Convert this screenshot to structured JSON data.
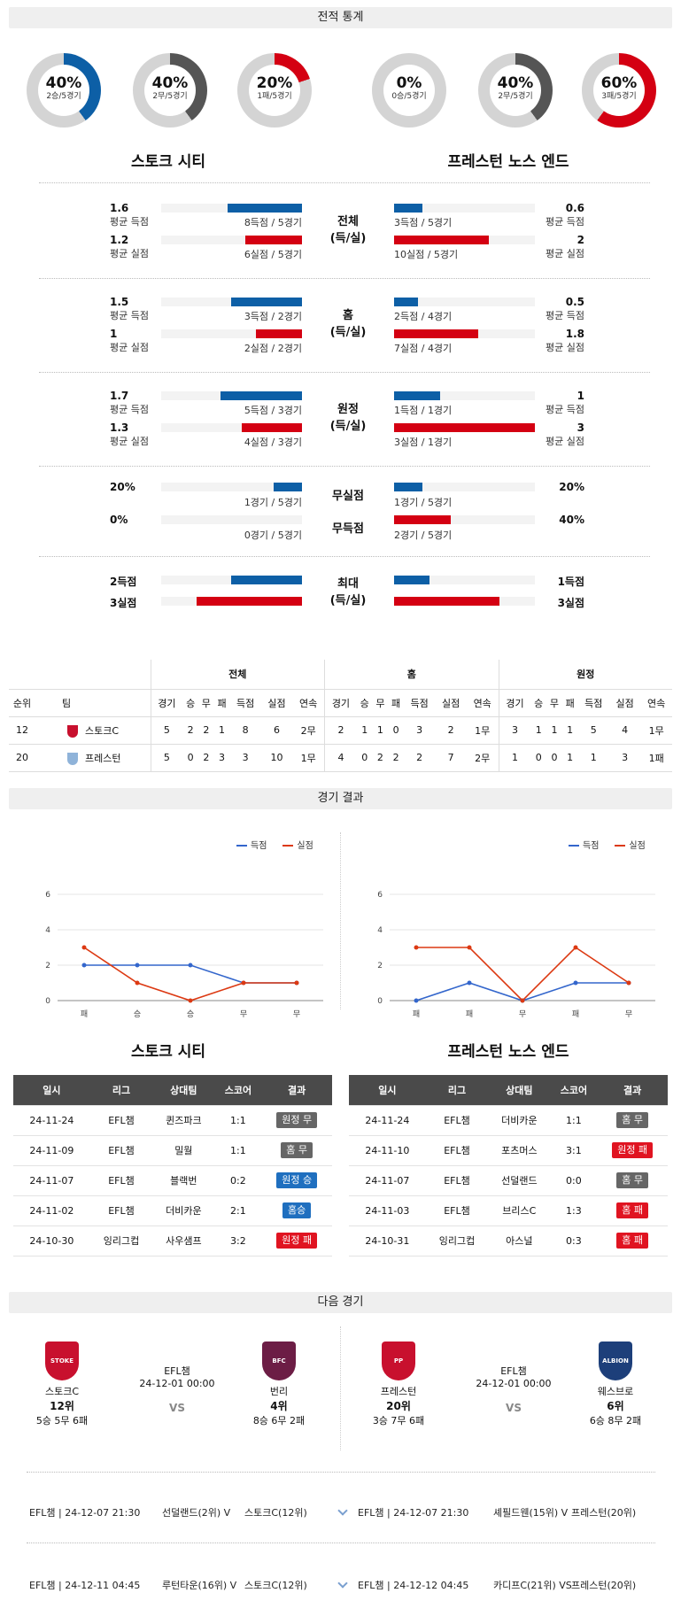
{
  "sections": {
    "stats": "전적 통계",
    "results": "경기 결과",
    "next": "다음 경기"
  },
  "donuts": [
    {
      "pct": "40%",
      "sub": "2승/5경기",
      "value": 40,
      "color": "#0d5fa6"
    },
    {
      "pct": "40%",
      "sub": "2무/5경기",
      "value": 40,
      "color": "#555555"
    },
    {
      "pct": "20%",
      "sub": "1패/5경기",
      "value": 20,
      "color": "#d40012"
    },
    {
      "pct": "0%",
      "sub": "0승/5경기",
      "value": 0,
      "color": "#0d5fa6"
    },
    {
      "pct": "40%",
      "sub": "2무/5경기",
      "value": 40,
      "color": "#555555"
    },
    {
      "pct": "60%",
      "sub": "3패/5경기",
      "value": 60,
      "color": "#d40012"
    }
  ],
  "teams": {
    "home": "스토크 시티",
    "away": "프레스턴 노스 엔드"
  },
  "labels": {
    "avg_gf": "평균 득점",
    "avg_ga": "평균 실점"
  },
  "groups": [
    {
      "cat1": "전체",
      "cat2": "(득/실)",
      "home": {
        "gf": "1.6",
        "gf_cnt": "8득점 / 5경기",
        "gf_frac": 0.53,
        "ga": "1.2",
        "ga_cnt": "6실점 / 5경기",
        "ga_frac": 0.4
      },
      "away": {
        "gf": "0.6",
        "gf_cnt": "3득점 / 5경기",
        "gf_frac": 0.2,
        "ga": "2",
        "ga_cnt": "10실점 / 5경기",
        "ga_frac": 0.67
      }
    },
    {
      "cat1": "홈",
      "cat2": "(득/실)",
      "home": {
        "gf": "1.5",
        "gf_cnt": "3득점 / 2경기",
        "gf_frac": 0.5,
        "ga": "1",
        "ga_cnt": "2실점 / 2경기",
        "ga_frac": 0.33
      },
      "away": {
        "gf": "0.5",
        "gf_cnt": "2득점 / 4경기",
        "gf_frac": 0.17,
        "ga": "1.8",
        "ga_cnt": "7실점 / 4경기",
        "ga_frac": 0.6
      }
    },
    {
      "cat1": "원정",
      "cat2": "(득/실)",
      "home": {
        "gf": "1.7",
        "gf_cnt": "5득점 / 3경기",
        "gf_frac": 0.58,
        "ga": "1.3",
        "ga_cnt": "4실점 / 3경기",
        "ga_frac": 0.43
      },
      "away": {
        "gf": "1",
        "gf_cnt": "1득점 / 1경기",
        "gf_frac": 0.33,
        "ga": "3",
        "ga_cnt": "3실점 / 1경기",
        "ga_frac": 1.0
      }
    }
  ],
  "clean": {
    "cat": "무실점",
    "home_val": "20%",
    "home_cnt": "1경기 / 5경기",
    "home_frac": 0.2,
    "away_val": "20%",
    "away_cnt": "1경기 / 5경기",
    "away_frac": 0.2
  },
  "noscore": {
    "cat": "무득점",
    "home_val": "0%",
    "home_cnt": "0경기 / 5경기",
    "home_frac": 0.0,
    "away_val": "40%",
    "away_cnt": "2경기 / 5경기",
    "away_frac": 0.4
  },
  "max": {
    "cat1": "최대",
    "cat2": "(득/실)",
    "home_gf": "2득점",
    "home_gf_frac": 0.5,
    "home_ga": "3실점",
    "home_ga_frac": 0.75,
    "away_gf": "1득점",
    "away_gf_frac": 0.25,
    "away_ga": "3실점",
    "away_ga_frac": 0.75
  },
  "standings": {
    "group_headers": [
      "전체",
      "홈",
      "원정"
    ],
    "cols_left": [
      "순위",
      "팀"
    ],
    "cols": [
      "경기",
      "승",
      "무",
      "패",
      "득점",
      "실점",
      "연속"
    ],
    "rows": [
      {
        "rank": "12",
        "team": "스토크C",
        "all": [
          "5",
          "2",
          "2",
          "1",
          "8",
          "6",
          "2무"
        ],
        "home": [
          "2",
          "1",
          "1",
          "0",
          "3",
          "2",
          "1무"
        ],
        "away": [
          "3",
          "1",
          "1",
          "1",
          "5",
          "4",
          "1무"
        ]
      },
      {
        "rank": "20",
        "team": "프레스턴",
        "all": [
          "5",
          "0",
          "2",
          "3",
          "3",
          "10",
          "1무"
        ],
        "home": [
          "4",
          "0",
          "2",
          "2",
          "2",
          "7",
          "2무"
        ],
        "away": [
          "1",
          "0",
          "0",
          "1",
          "1",
          "3",
          "1패"
        ]
      }
    ]
  },
  "chart_data": [
    {
      "type": "line",
      "categories": [
        "패",
        "승",
        "승",
        "무",
        "무"
      ],
      "series": [
        {
          "name": "득점",
          "values": [
            2,
            2,
            2,
            1,
            1
          ],
          "color": "#3366cc"
        },
        {
          "name": "실점",
          "values": [
            3,
            1,
            0,
            1,
            1
          ],
          "color": "#dc3912"
        }
      ],
      "ylim": [
        0,
        6
      ],
      "yticks": [
        "0",
        "2",
        "4",
        "6"
      ]
    },
    {
      "type": "line",
      "categories": [
        "패",
        "패",
        "무",
        "패",
        "무"
      ],
      "series": [
        {
          "name": "득점",
          "values": [
            0,
            1,
            0,
            1,
            1
          ],
          "color": "#3366cc"
        },
        {
          "name": "실점",
          "values": [
            3,
            3,
            0,
            3,
            1
          ],
          "color": "#dc3912"
        }
      ],
      "ylim": [
        0,
        6
      ],
      "yticks": [
        "0",
        "2",
        "4",
        "6"
      ]
    }
  ],
  "results": {
    "headers": [
      "일시",
      "리그",
      "상대팀",
      "스코어",
      "결과"
    ],
    "home": [
      {
        "date": "24-11-24",
        "league": "EFL챔",
        "opp": "퀸즈파크",
        "score": "1:1",
        "res": "원정 무",
        "cls": "r-g"
      },
      {
        "date": "24-11-09",
        "league": "EFL챔",
        "opp": "밀월",
        "score": "1:1",
        "res": "홈 무",
        "cls": "r-g"
      },
      {
        "date": "24-11-07",
        "league": "EFL챔",
        "opp": "블랙번",
        "score": "0:2",
        "res": "원정 승",
        "cls": "r-b"
      },
      {
        "date": "24-11-02",
        "league": "EFL챔",
        "opp": "더비카운",
        "score": "2:1",
        "res": "홈승",
        "cls": "r-b"
      },
      {
        "date": "24-10-30",
        "league": "잉리그컵",
        "opp": "사우샘프",
        "score": "3:2",
        "res": "원정 패",
        "cls": "r-r"
      }
    ],
    "away": [
      {
        "date": "24-11-24",
        "league": "EFL챔",
        "opp": "더비카운",
        "score": "1:1",
        "res": "홈 무",
        "cls": "r-g"
      },
      {
        "date": "24-11-10",
        "league": "EFL챔",
        "opp": "포츠머스",
        "score": "3:1",
        "res": "원정 패",
        "cls": "r-r"
      },
      {
        "date": "24-11-07",
        "league": "EFL챔",
        "opp": "선덜랜드",
        "score": "0:0",
        "res": "홈 무",
        "cls": "r-g"
      },
      {
        "date": "24-11-03",
        "league": "EFL챔",
        "opp": "브리스C",
        "score": "1:3",
        "res": "홈 패",
        "cls": "r-r"
      },
      {
        "date": "24-10-31",
        "league": "잉리그컵",
        "opp": "아스널",
        "score": "0:3",
        "res": "홈 패",
        "cls": "r-r"
      }
    ]
  },
  "next": [
    {
      "home": {
        "logo": "STOKE",
        "name": "스토크C",
        "rank": "12위",
        "rec": "5승 5무 6패"
      },
      "league": "EFL챔",
      "date": "24-12-01 00:00",
      "vs": "VS",
      "away": {
        "logo": "BFC",
        "name": "번리",
        "rank": "4위",
        "rec": "8승 6무 2패"
      }
    },
    {
      "home": {
        "logo": "PP",
        "name": "프레스턴",
        "rank": "20위",
        "rec": "3승 7무 6패"
      },
      "league": "EFL챔",
      "date": "24-12-01 00:00",
      "vs": "VS",
      "away": {
        "logo": "ALBION",
        "name": "웨스브로",
        "rank": "6위",
        "rec": "6승 8무 2패"
      }
    }
  ],
  "fixtures": [
    {
      "l_info": "EFL챔 | 24-12-07 21:30",
      "l_match": "선덜랜드(2위) V",
      "l_team": "스토크C(12위)",
      "r_info": "EFL챔 | 24-12-07 21:30",
      "r_match": "셰필드웬(15위) V",
      "r_team": "프레스턴(20위)"
    },
    {
      "l_info": "EFL챔 | 24-12-11 04:45",
      "l_match": "루턴타운(16위) V",
      "l_team": "스토크C(12위)",
      "r_info": "EFL챔 | 24-12-12 04:45",
      "r_match": "카디프C(21위) VS",
      "r_team": "프레스턴(20위)"
    }
  ]
}
